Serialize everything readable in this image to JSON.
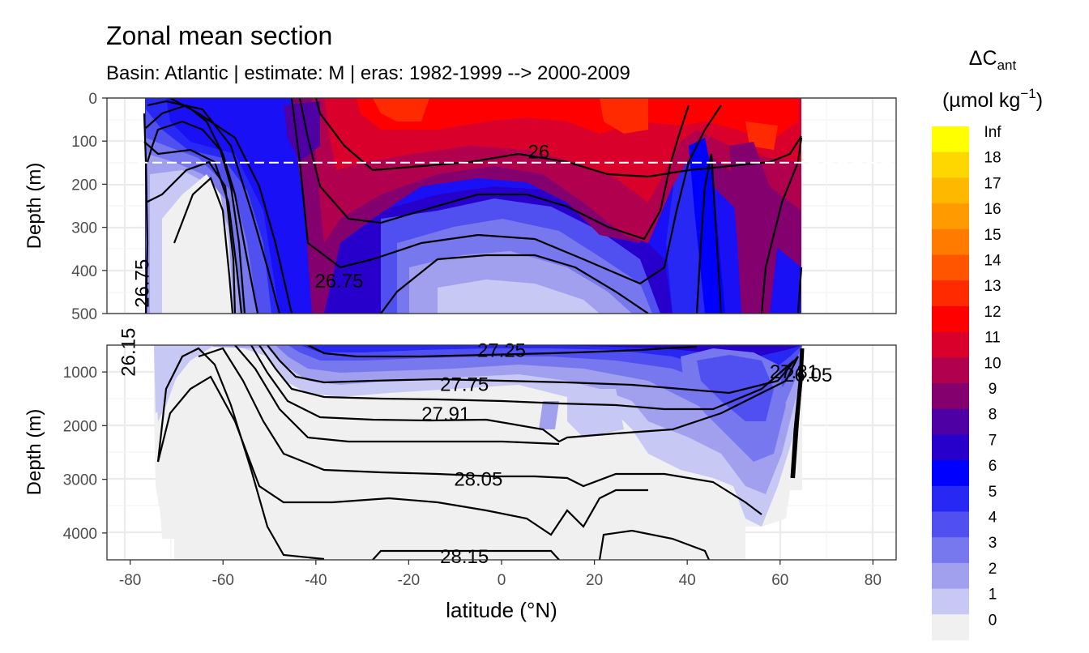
{
  "title": "Zonal mean section",
  "subtitle": "Basin: Atlantic | estimate: M  | eras: 1982-1999 --> 2000-2009",
  "chart_data": {
    "type": "heatmap",
    "title": "Zonal mean section",
    "subtitle": "Basin: Atlantic | estimate: M  | eras: 1982-1999 --> 2000-2009",
    "xlabel": "latitude (°N)",
    "ylabel": "Depth (m)",
    "xlim": [
      -85,
      85
    ],
    "x_ticks": [
      -80,
      -60,
      -40,
      -20,
      0,
      20,
      40,
      60,
      80
    ],
    "x_tick_labels": [
      "-80",
      "-60",
      "-40",
      "-20",
      "0",
      "20",
      "40",
      "60",
      "80"
    ],
    "data_lat_range": [
      -77,
      64
    ],
    "panels": [
      {
        "name": "upper",
        "ylim": [
          0,
          500
        ],
        "y_ticks": [
          0,
          100,
          200,
          300,
          400,
          500
        ],
        "y_tick_labels": [
          "0",
          "100",
          "200",
          "300",
          "400",
          "500"
        ],
        "reference_line_depth": 150,
        "contour_labels": [
          {
            "text": "26",
            "lat": 8,
            "depth": 125
          },
          {
            "text": "26.75",
            "lat": -35,
            "depth": 425
          },
          {
            "text": "26.75",
            "lat": -76,
            "depth": 415
          }
        ]
      },
      {
        "name": "lower",
        "ylim": [
          500,
          4500
        ],
        "y_ticks": [
          1000,
          2000,
          3000,
          4000
        ],
        "y_tick_labels": [
          "1000",
          "2000",
          "3000",
          "4000"
        ],
        "contour_labels": [
          {
            "text": "27.25",
            "lat": 0,
            "depth": 600
          },
          {
            "text": "27.75",
            "lat": -8,
            "depth": 1230
          },
          {
            "text": "27.91",
            "lat": -12,
            "depth": 1780
          },
          {
            "text": "28.05",
            "lat": -5,
            "depth": 3000
          },
          {
            "text": "28.15",
            "lat": -8,
            "depth": 4440
          },
          {
            "text": "26.15",
            "lat": -79,
            "depth": 510
          },
          {
            "text": "27.81",
            "lat": 63,
            "depth": 1000
          },
          {
            "text": "26.05",
            "lat": 66,
            "depth": 1060
          }
        ]
      }
    ],
    "legend": {
      "title": "ΔC",
      "title_subscript": "ant",
      "unit_prefix": "(µmol kg",
      "unit_superscript": "−1",
      "unit_suffix": ")",
      "breaks": [
        "Inf",
        "18",
        "17",
        "16",
        "15",
        "14",
        "13",
        "12",
        "11",
        "10",
        "9",
        "8",
        "7",
        "6",
        "5",
        "4",
        "3",
        "2",
        "1",
        "0"
      ],
      "colors": [
        "#ffff00",
        "#ffd700",
        "#ffb800",
        "#ff9a00",
        "#ff7b00",
        "#ff5500",
        "#ff2a00",
        "#ff0000",
        "#d9002b",
        "#b1004e",
        "#85006f",
        "#4f00a4",
        "#2800cc",
        "#0000ff",
        "#2828f5",
        "#5050f0",
        "#7878ee",
        "#a0a0ee",
        "#c8c8f4",
        "#f0f0f0"
      ]
    }
  }
}
